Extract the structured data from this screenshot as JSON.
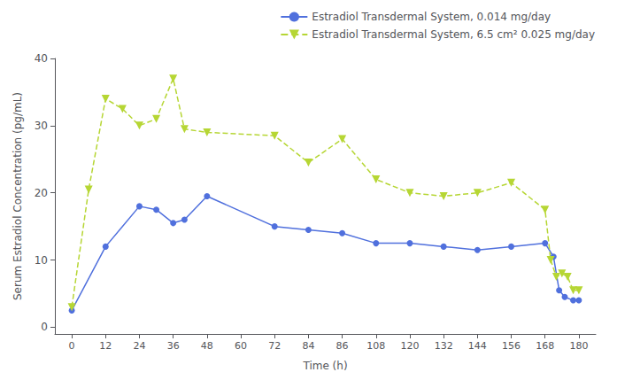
{
  "chart_data": {
    "type": "line",
    "xlabel": "Time (h)",
    "ylabel": "Serum Estradiol Concentration (pg/mL)",
    "xlim": [
      -6,
      186
    ],
    "xticks": [
      0,
      12,
      24,
      36,
      48,
      60,
      72,
      84,
      86,
      108,
      120,
      132,
      144,
      156,
      168,
      180
    ],
    "ylim": [
      -1,
      40
    ],
    "yticks": [
      0,
      10,
      20,
      30,
      40
    ],
    "grid": false,
    "legend": "upper right",
    "series": [
      {
        "name": "Estradiol Transdermal System, 0.014 mg/day",
        "marker": "circle",
        "line_style": "solid",
        "x": [
          0,
          12,
          24,
          30,
          36,
          40,
          48,
          72,
          84,
          86,
          108,
          120,
          132,
          144,
          156,
          168,
          171,
          173,
          175,
          178,
          180
        ],
        "values": [
          2.5,
          12,
          18,
          17.5,
          15.5,
          16,
          19.5,
          15,
          14.5,
          14,
          12.5,
          12.5,
          12,
          11.5,
          12,
          12.5,
          10.5,
          5.5,
          4.5,
          4.0,
          4.0
        ]
      },
      {
        "name": "Estradiol Transdermal System, 6.5 cm² 0.025 mg/day",
        "marker": "triangle-down",
        "line_style": "dashed",
        "x": [
          0,
          6,
          12,
          18,
          24,
          30,
          36,
          40,
          48,
          72,
          84,
          86,
          108,
          120,
          132,
          144,
          156,
          168,
          170,
          172,
          174,
          176,
          178,
          180
        ],
        "values": [
          3,
          20.5,
          34,
          32.5,
          30,
          31,
          37,
          29.5,
          29,
          28.5,
          24.5,
          28,
          22,
          20,
          19.5,
          20,
          21.5,
          17.5,
          10.0,
          7.5,
          8.0,
          7.5,
          5.5,
          5.5
        ]
      }
    ]
  }
}
